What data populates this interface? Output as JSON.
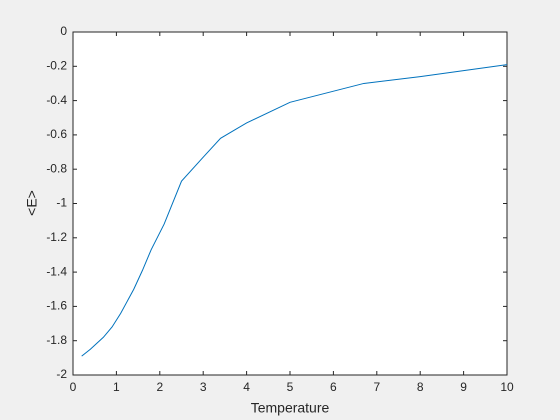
{
  "chart_data": {
    "type": "line",
    "x_label": "Temperature",
    "y_label": "<E>",
    "x": [
      0.2,
      0.4,
      0.7,
      0.9,
      1.1,
      1.4,
      1.6,
      1.8,
      2.1,
      2.5,
      3.0,
      3.4,
      4.0,
      5.0,
      6.7,
      8.0,
      10.0
    ],
    "series": [
      {
        "name": "<E>",
        "color": "#0072bd",
        "values": [
          -1.89,
          -1.85,
          -1.78,
          -1.72,
          -1.64,
          -1.5,
          -1.39,
          -1.27,
          -1.12,
          -0.87,
          -0.73,
          -0.62,
          -0.53,
          -0.41,
          -0.3,
          -0.26,
          -0.19
        ]
      }
    ],
    "xlim": [
      0,
      10
    ],
    "ylim": [
      -2,
      0
    ],
    "xticks": [
      0,
      1,
      2,
      3,
      4,
      5,
      6,
      7,
      8,
      9,
      10
    ],
    "yticks": [
      -2,
      -1.8,
      -1.6,
      -1.4,
      -1.2,
      -1,
      -0.8,
      -0.6,
      -0.4,
      -0.2,
      0
    ],
    "grid": false
  }
}
